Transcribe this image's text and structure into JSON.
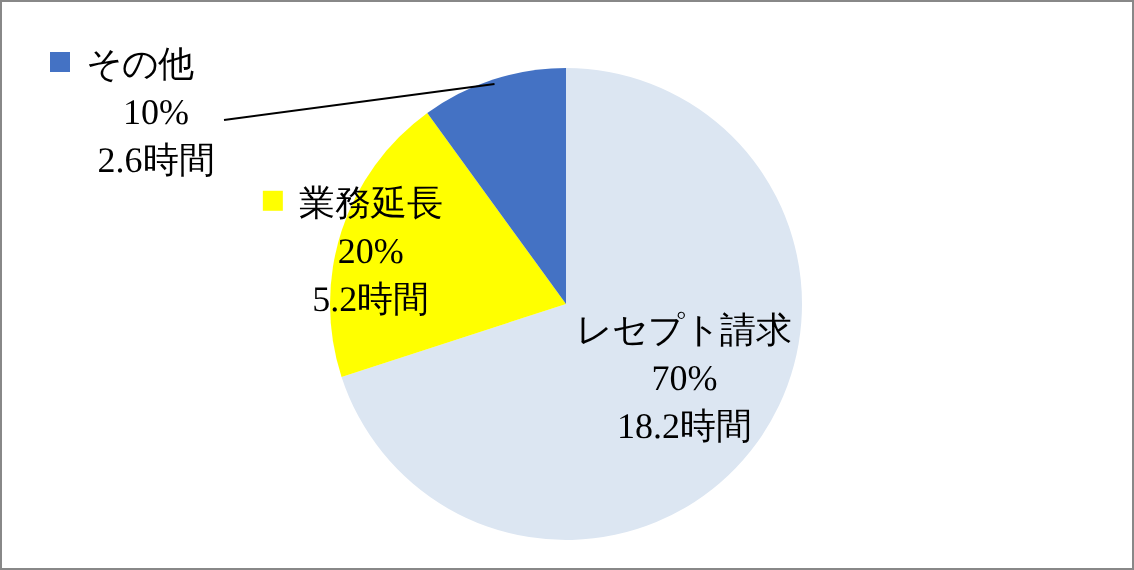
{
  "chart_data": {
    "type": "pie",
    "categories": [
      "レセプト請求",
      "業務延長",
      "その他"
    ],
    "values": [
      70,
      20,
      10
    ],
    "colors": [
      "#dce6f2",
      "#ffff00",
      "#4472c4"
    ],
    "legend": "top left",
    "value_labels": [
      "70%\n18.2時間",
      "20%\n5.2時間",
      "10%\n2.6時間"
    ]
  }
}
